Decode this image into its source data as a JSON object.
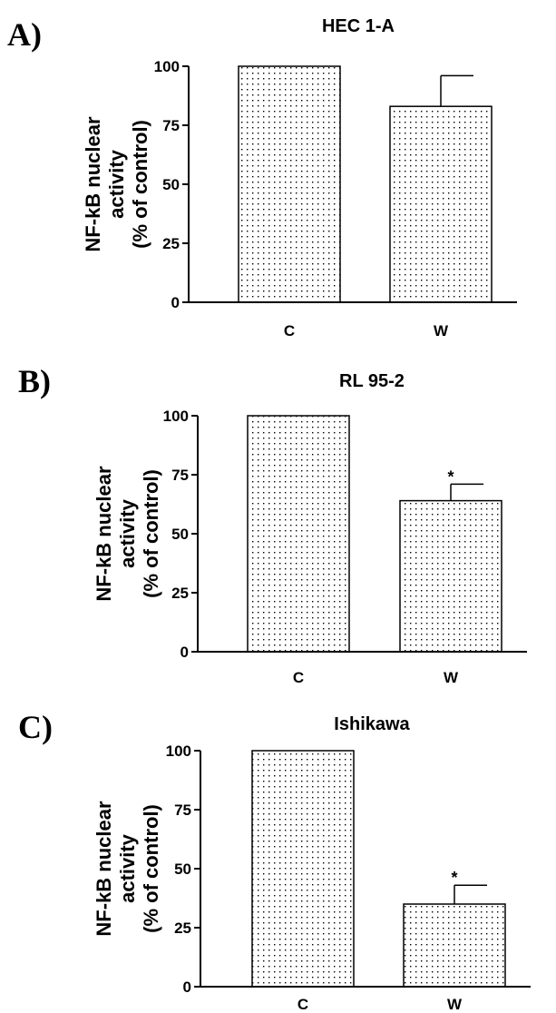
{
  "chart_data": [
    {
      "type": "bar",
      "panel": "A)",
      "title": "HEC 1-A",
      "categories": [
        "C",
        "W"
      ],
      "values": [
        100,
        83
      ],
      "error": [
        0,
        13
      ],
      "significance": [
        "",
        ""
      ],
      "ylabel": [
        "NF-kB nuclear",
        "activity",
        "(% of control)"
      ],
      "ylim": [
        0,
        100
      ],
      "yticks": [
        0,
        25,
        50,
        75,
        100
      ],
      "ytick_labels": [
        "0",
        "25",
        "50",
        "75",
        "100"
      ]
    },
    {
      "type": "bar",
      "panel": "B)",
      "title": "RL 95-2",
      "categories": [
        "C",
        "W"
      ],
      "values": [
        100,
        64
      ],
      "error": [
        0,
        7
      ],
      "significance": [
        "",
        "*"
      ],
      "ylabel": [
        "NF-kB nuclear",
        "activity",
        "(% of control)"
      ],
      "ylim": [
        0,
        100
      ],
      "yticks": [
        0,
        25,
        50,
        75,
        100
      ],
      "ytick_labels": [
        "0",
        "25",
        "50",
        "75",
        "100"
      ]
    },
    {
      "type": "bar",
      "panel": "C)",
      "title": "Ishikawa",
      "categories": [
        "C",
        "W"
      ],
      "values": [
        100,
        35
      ],
      "error": [
        0,
        8
      ],
      "significance": [
        "",
        "*"
      ],
      "ylabel": [
        "NF-kB nuclear",
        "activity",
        "(% of control)"
      ],
      "ylim": [
        0,
        100
      ],
      "yticks": [
        0,
        25,
        50,
        75,
        100
      ],
      "ytick_labels": [
        "0",
        "25",
        "50",
        "75",
        "100"
      ]
    }
  ]
}
